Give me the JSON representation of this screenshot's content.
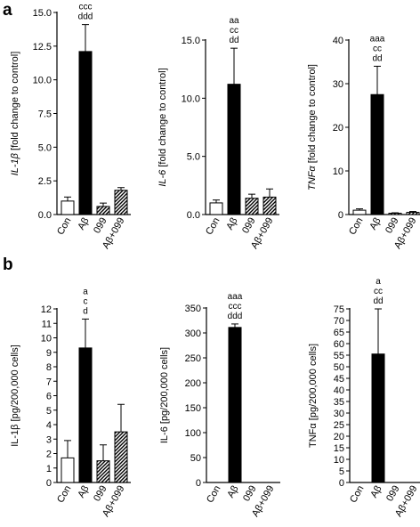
{
  "panel_labels": [
    "a",
    "b"
  ],
  "colors": {
    "axis": "#000000",
    "solid_fill": "#000000",
    "empty_fill": "#ffffff"
  },
  "chart_data": [
    {
      "type": "bar",
      "panel": "a",
      "ylabel_italic": "IL-1β",
      "ylabel_rest": " [fold change to control]",
      "categories": [
        "Con",
        "Aβ",
        "099",
        "Aβ+099"
      ],
      "fills": [
        "white",
        "black",
        "hatch",
        "hatch"
      ],
      "values": [
        1.0,
        12.1,
        0.6,
        1.8
      ],
      "errors": [
        0.3,
        2.0,
        0.25,
        0.2
      ],
      "significance": [
        "",
        "aaa\nccc\nddd",
        "",
        ""
      ],
      "ylim": [
        0,
        15
      ],
      "yticks": [
        0,
        2.5,
        5.0,
        7.5,
        10.0,
        12.5,
        15.0
      ],
      "ytick_labels": [
        "0.0",
        "2.5",
        "5.0",
        "7.5",
        "10.0",
        "12.5",
        "15.0"
      ]
    },
    {
      "type": "bar",
      "panel": "a",
      "ylabel_italic": "IL-6",
      "ylabel_rest": " [fold change to control]",
      "categories": [
        "Con",
        "Aβ",
        "099",
        "Aβ+099"
      ],
      "fills": [
        "white",
        "black",
        "hatch",
        "hatch"
      ],
      "values": [
        1.0,
        11.2,
        1.4,
        1.5
      ],
      "errors": [
        0.25,
        3.1,
        0.35,
        0.7
      ],
      "significance": [
        "",
        "aa\ncc\ndd",
        "",
        ""
      ],
      "ylim": [
        0,
        15
      ],
      "yticks": [
        0,
        5,
        10,
        15
      ],
      "ytick_labels": [
        "0.0",
        "5.0",
        "10.0",
        "15.0"
      ]
    },
    {
      "type": "bar",
      "panel": "a",
      "ylabel_italic": "TNFα",
      "ylabel_rest": " [fold change to control]",
      "categories": [
        "Con",
        "Aβ",
        "099",
        "Aβ+099"
      ],
      "fills": [
        "white",
        "black",
        "hatch",
        "hatch"
      ],
      "values": [
        1.0,
        27.5,
        0.3,
        0.5
      ],
      "errors": [
        0.3,
        6.5,
        0.1,
        0.2
      ],
      "significance": [
        "",
        "aaa\ncc\ndd",
        "",
        ""
      ],
      "ylim": [
        0,
        40
      ],
      "yticks": [
        0,
        10,
        20,
        30,
        40
      ],
      "ytick_labels": [
        "0",
        "10",
        "20",
        "30",
        "40"
      ]
    },
    {
      "type": "bar",
      "panel": "b",
      "ylabel_italic": "",
      "ylabel_rest": "IL-1β [pg/200,000 cells]",
      "categories": [
        "Con",
        "Aβ",
        "099",
        "Aβ+099"
      ],
      "fills": [
        "white",
        "black",
        "hatch",
        "hatch"
      ],
      "values": [
        1.7,
        9.3,
        1.5,
        3.5
      ],
      "errors": [
        1.2,
        2.0,
        1.1,
        1.9
      ],
      "significance": [
        "",
        "a\nc\nd",
        "",
        ""
      ],
      "ylim": [
        0,
        12
      ],
      "yticks": [
        0,
        1,
        2,
        3,
        4,
        5,
        6,
        7,
        8,
        9,
        10,
        11,
        12
      ],
      "ytick_labels": [
        "0",
        "1",
        "2",
        "3",
        "4",
        "5",
        "6",
        "7",
        "8",
        "9",
        "10",
        "11",
        "12"
      ]
    },
    {
      "type": "bar",
      "panel": "b",
      "ylabel_italic": "",
      "ylabel_rest": "IL-6 [pg/200,000 cells]",
      "categories": [
        "Con",
        "Aβ",
        "099",
        "Aβ+099"
      ],
      "fills": [
        "white",
        "black",
        "hatch",
        "hatch"
      ],
      "values": [
        0,
        311,
        0,
        0
      ],
      "errors": [
        0,
        7,
        0,
        0
      ],
      "significance": [
        "",
        "aaa\nccc\nddd",
        "",
        ""
      ],
      "ylim": [
        0,
        350
      ],
      "yticks": [
        0,
        50,
        100,
        150,
        200,
        250,
        300,
        350
      ],
      "ytick_labels": [
        "0",
        "50",
        "100",
        "150",
        "200",
        "250",
        "300",
        "350"
      ]
    },
    {
      "type": "bar",
      "panel": "b",
      "ylabel_italic": "",
      "ylabel_rest": "TNFα [pg/200,000 cells]",
      "categories": [
        "Con",
        "Aβ",
        "099",
        "Aβ+099"
      ],
      "fills": [
        "white",
        "black",
        "hatch",
        "hatch"
      ],
      "values": [
        0,
        55.5,
        0,
        0
      ],
      "errors": [
        0,
        19.5,
        0,
        0
      ],
      "significance": [
        "",
        "a\ncc\ndd",
        "",
        ""
      ],
      "ylim": [
        0,
        75
      ],
      "yticks": [
        0,
        5,
        10,
        15,
        20,
        25,
        30,
        35,
        40,
        45,
        50,
        55,
        60,
        65,
        70,
        75
      ],
      "ytick_labels": [
        "0",
        "5",
        "10",
        "15",
        "20",
        "25",
        "30",
        "35",
        "40",
        "45",
        "50",
        "55",
        "60",
        "65",
        "70",
        "75"
      ]
    }
  ]
}
